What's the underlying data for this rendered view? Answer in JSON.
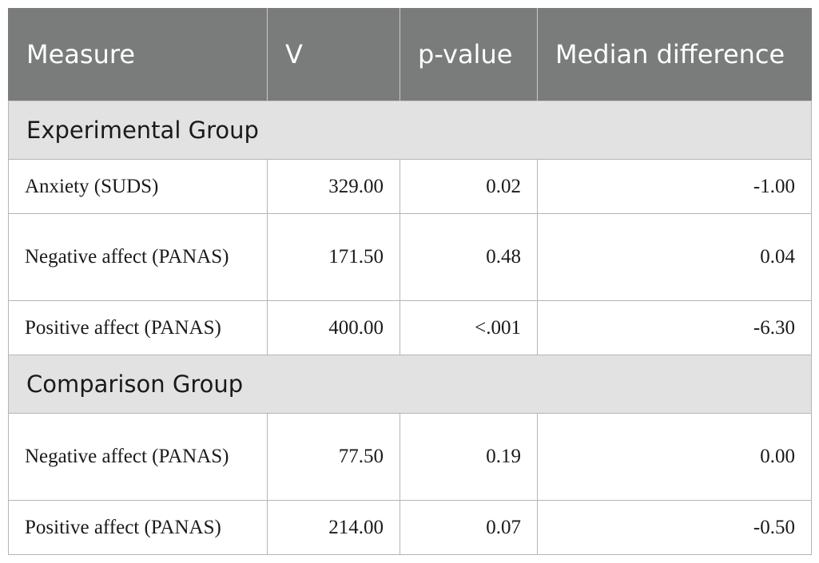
{
  "table": {
    "headers": [
      "Measure",
      "V",
      "p-value",
      "Median difference"
    ],
    "groups": [
      {
        "label": "Experimental Group",
        "rows": [
          {
            "measure": "Anxiety (SUDS)",
            "v": "329.00",
            "p": "0.02",
            "median_diff": "-1.00"
          },
          {
            "measure": "Negative affect (PANAS)",
            "v": "171.50",
            "p": "0.48",
            "median_diff": "0.04"
          },
          {
            "measure": "Positive affect (PANAS)",
            "v": "400.00",
            "p": "<.001",
            "median_diff": "-6.30"
          }
        ]
      },
      {
        "label": "Comparison Group",
        "rows": [
          {
            "measure": "Negative affect (PANAS)",
            "v": "77.50",
            "p": "0.19",
            "median_diff": "0.00"
          },
          {
            "measure": "Positive affect (PANAS)",
            "v": "214.00",
            "p": "0.07",
            "median_diff": "-0.50"
          }
        ]
      }
    ]
  },
  "colors": {
    "header_bg": "#7a7c7b",
    "group_bg": "#e2e2e2",
    "border": "#b5b5b5"
  }
}
